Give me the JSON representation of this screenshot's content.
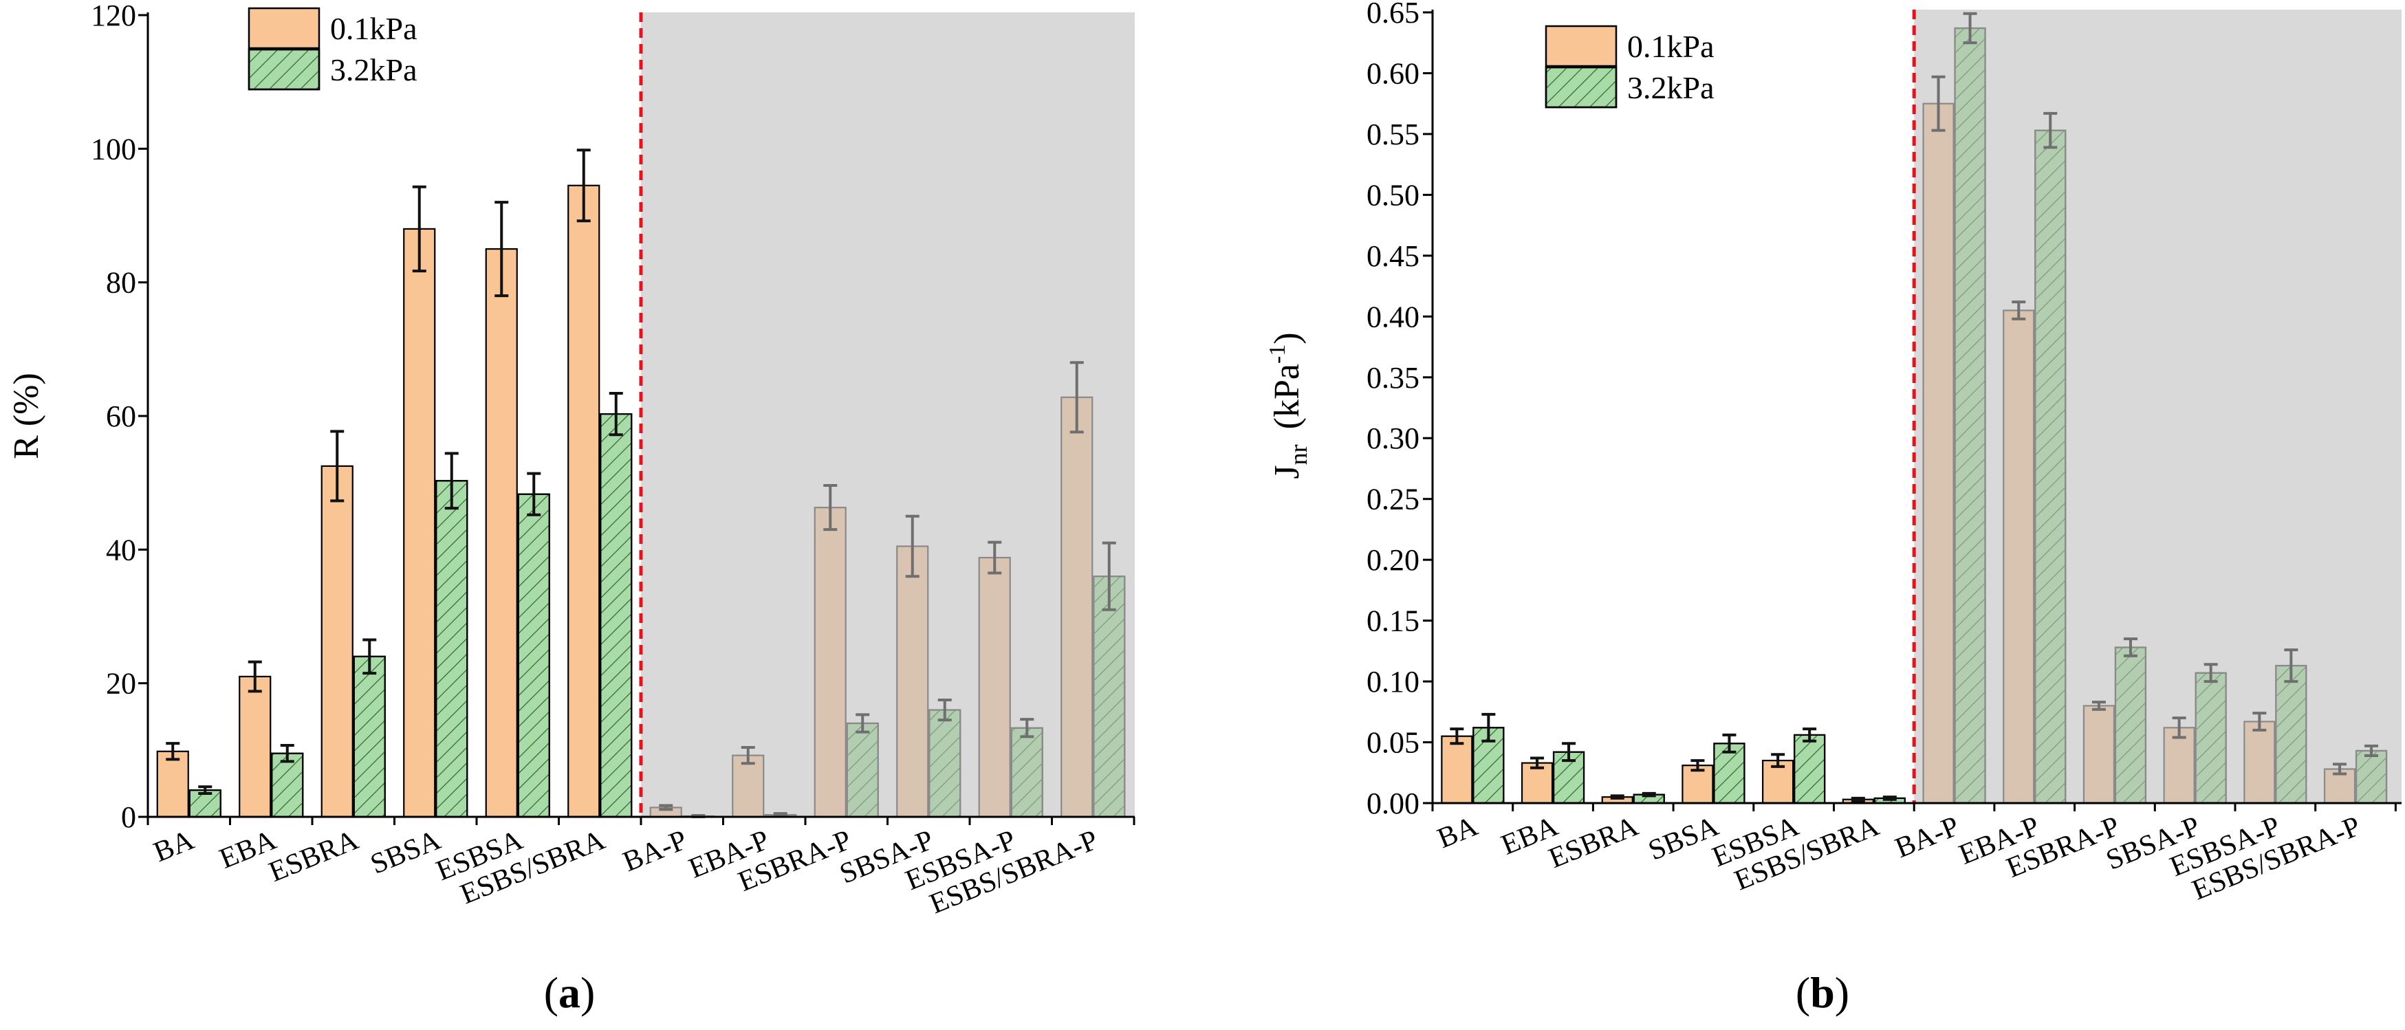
{
  "colors": {
    "orange": "#F9C594",
    "green": "#A8DBA8",
    "grey_region": "#D9D9D9",
    "divider": "#E8121A",
    "orange_shaded": "#D9C3B1",
    "green_shaded": "#B3CDB1"
  },
  "chart_data": [
    {
      "type": "bar",
      "panel_label_open": "(",
      "panel_label_letter": "a",
      "panel_label_close": ")",
      "ylabel": "R (%)",
      "ylim": [
        0,
        120
      ],
      "yticks": [
        0,
        20,
        40,
        60,
        80,
        100,
        120
      ],
      "ytick_labels": [
        "0",
        "20",
        "40",
        "60",
        "80",
        "100",
        "120"
      ],
      "categories": [
        "BA",
        "EBA",
        "ESBRA",
        "SBSA",
        "ESBSA",
        "ESBS/SBRA",
        "BA-P",
        "EBA-P",
        "ESBRA-P",
        "SBSA-P",
        "ESBSA-P",
        "ESBS/SBRA-P"
      ],
      "shaded_from_index": 6,
      "legend": [
        "0.1kPa",
        "3.2kPa"
      ],
      "legend_position": "top-left",
      "series": [
        {
          "name": "0.1kPa",
          "values": [
            9.8,
            21.0,
            52.5,
            88.0,
            85.0,
            94.5,
            1.4,
            9.2,
            46.3,
            40.5,
            38.8,
            62.8
          ],
          "errors": [
            1.2,
            2.2,
            5.2,
            6.3,
            7.0,
            5.3,
            0.3,
            1.2,
            3.3,
            4.5,
            2.3,
            5.2
          ]
        },
        {
          "name": "3.2kPa",
          "values": [
            4.0,
            9.5,
            24.0,
            50.3,
            48.3,
            60.3,
            0.1,
            0.3,
            14.0,
            16.0,
            13.3,
            36.0
          ],
          "errors": [
            0.5,
            1.2,
            2.5,
            4.1,
            3.1,
            3.1,
            0.1,
            0.2,
            1.3,
            1.5,
            1.3,
            5.0
          ]
        }
      ]
    },
    {
      "type": "bar",
      "panel_label_open": "(",
      "panel_label_letter": "b",
      "panel_label_close": ")",
      "ylabel_main": "J",
      "ylabel_sub": "nr",
      "ylabel_unit_open": "(kPa",
      "ylabel_sup": "-1",
      "ylabel_unit_close": ")",
      "ylim": [
        0,
        0.65
      ],
      "yticks": [
        0,
        0.05,
        0.1,
        0.15,
        0.2,
        0.25,
        0.3,
        0.35,
        0.4,
        0.45,
        0.5,
        0.55,
        0.6,
        0.65
      ],
      "ytick_labels": [
        "0.00",
        "0.05",
        "0.10",
        "0.15",
        "0.20",
        "0.25",
        "0.30",
        "0.35",
        "0.40",
        "0.45",
        "0.50",
        "0.55",
        "0.60",
        "0.65"
      ],
      "categories": [
        "BA",
        "EBA",
        "ESBRA",
        "SBSA",
        "ESBSA",
        "ESBS/SBRA",
        "BA-P",
        "EBA-P",
        "ESBRA-P",
        "SBSA-P",
        "ESBSA-P",
        "ESBS/SBRA-P"
      ],
      "shaded_from_index": 6,
      "legend": [
        "0.1kPa",
        "3.2kPa"
      ],
      "legend_position": "top-left",
      "series": [
        {
          "name": "0.1kPa",
          "values": [
            0.055,
            0.033,
            0.005,
            0.031,
            0.035,
            0.003,
            0.575,
            0.405,
            0.08,
            0.062,
            0.067,
            0.028
          ],
          "errors": [
            0.006,
            0.004,
            0.001,
            0.004,
            0.005,
            0.001,
            0.022,
            0.007,
            0.003,
            0.008,
            0.007,
            0.004
          ]
        },
        {
          "name": "3.2kPa",
          "values": [
            0.062,
            0.042,
            0.007,
            0.049,
            0.056,
            0.004,
            0.637,
            0.553,
            0.128,
            0.107,
            0.113,
            0.043
          ],
          "errors": [
            0.011,
            0.007,
            0.001,
            0.007,
            0.005,
            0.001,
            0.012,
            0.014,
            0.007,
            0.007,
            0.013,
            0.004
          ]
        }
      ]
    }
  ]
}
